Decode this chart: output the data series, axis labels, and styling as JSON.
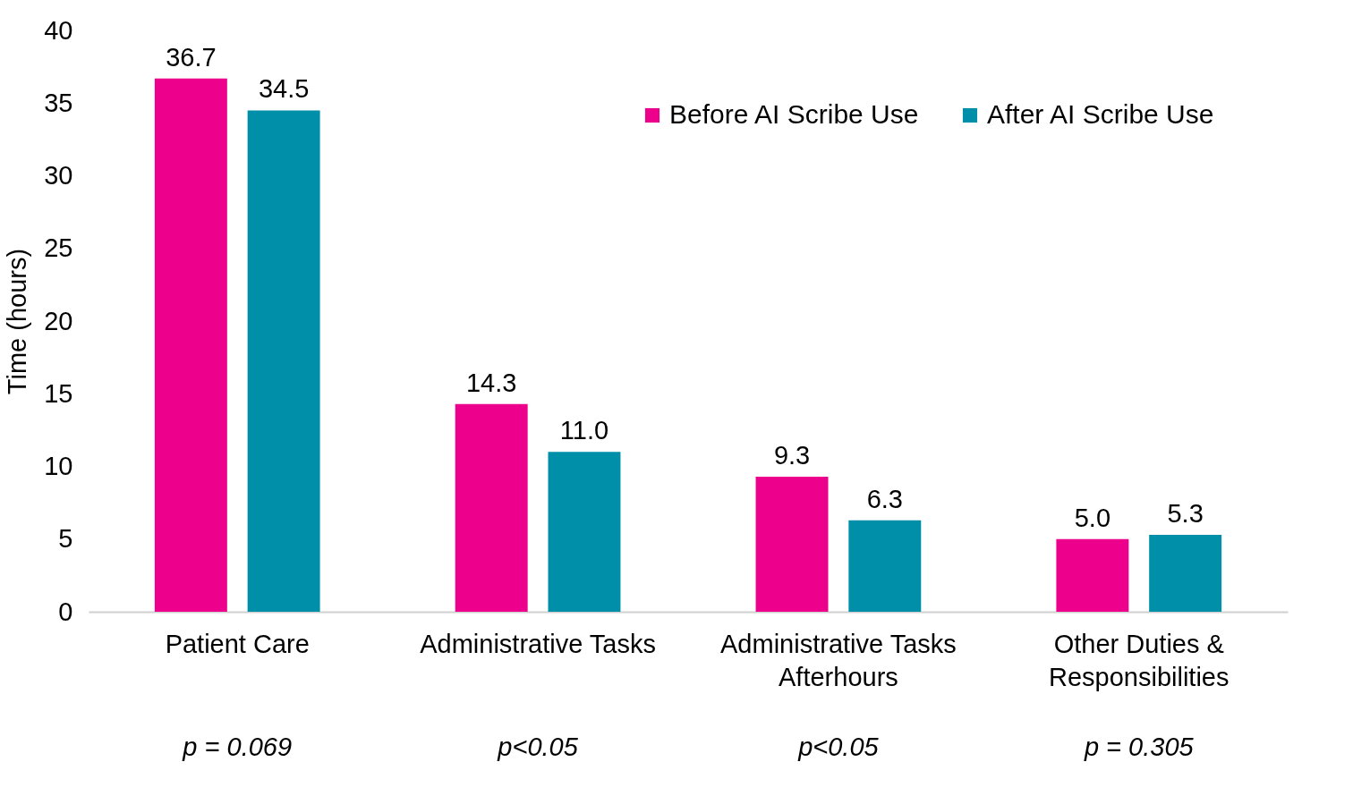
{
  "chart_data": {
    "type": "bar",
    "ylabel": "Time (hours)",
    "categories": [
      "Patient Care",
      "Administrative Tasks",
      "Administrative Tasks\nAfterhours",
      "Other Duties &\nResponsibilities"
    ],
    "series": [
      {
        "name": "Before AI Scribe Use",
        "color": "#ec008c",
        "values": [
          36.7,
          14.3,
          9.3,
          5.0
        ],
        "value_labels": [
          "36.7",
          "14.3",
          "9.3",
          "5.0"
        ]
      },
      {
        "name": "After AI Scribe Use",
        "color": "#008fa8",
        "values": [
          34.5,
          11.0,
          6.3,
          5.3
        ],
        "value_labels": [
          "34.5",
          "11.0",
          "6.3",
          "5.3"
        ]
      }
    ],
    "ylim": [
      0,
      40
    ],
    "yticks": [
      0,
      5,
      10,
      15,
      20,
      25,
      30,
      35,
      40
    ],
    "grid": false,
    "legend": "top right",
    "annotations": [
      "p = 0.069",
      "p<0.05",
      "p<0.05",
      "p = 0.305"
    ]
  }
}
